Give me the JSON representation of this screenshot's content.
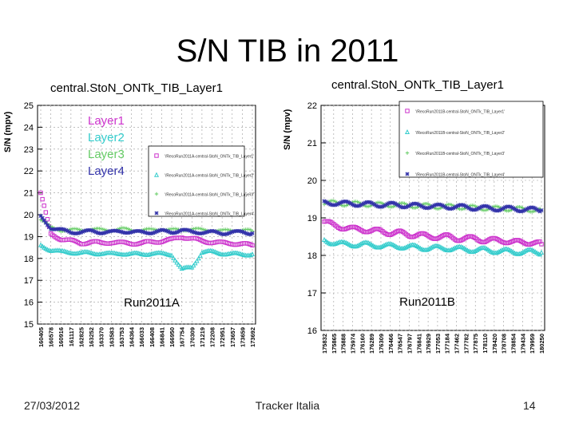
{
  "slide": {
    "title": "S/N TIB in 2011",
    "footer_date": "27/03/2012",
    "footer_center": "Tracker Italia",
    "page_number": "14"
  },
  "colors": {
    "layer1": "#cc33cc",
    "layer2": "#33cccc",
    "layer3": "#66cc66",
    "layer4": "#3333aa"
  },
  "chart_data": [
    {
      "type": "scatter",
      "title": "central.StoN_ONTk_TIB_Layer1",
      "ylabel": "S/N (mpv)",
      "xlabel": "",
      "ylim": [
        15,
        25
      ],
      "yticks": [
        15,
        16,
        17,
        18,
        19,
        20,
        21,
        22,
        23,
        24,
        25
      ],
      "period_label": "Run2011A",
      "x_tick_labels": [
        "160405",
        "160578",
        "160916",
        "161117",
        "162825",
        "163252",
        "163370",
        "163583",
        "163753",
        "164364",
        "166033",
        "166408",
        "166841",
        "166950",
        "167754",
        "170309",
        "171219",
        "172208",
        "172951",
        "173657",
        "173659",
        "173692"
      ],
      "legend_layers": [
        "Layer1",
        "Layer2",
        "Layer3",
        "Layer4"
      ],
      "legend_entries": [
        "'/RecoRun2011A-central-StoN_ONTk_TIB_Layer1'",
        "'/RecoRun2011A-central-StoN_ONTk_TIB_Layer2'",
        "'/RecoRun2011A-central-StoN_ONTk_TIB_Layer3'",
        "'/RecoRun2011A-central-StoN_ONTk_TIB_Layer4'"
      ],
      "series": [
        {
          "name": "Layer1",
          "color": "#cc33cc",
          "values": [
            21.0,
            19.1,
            18.9,
            18.8,
            18.7,
            18.75,
            18.7,
            18.75,
            18.7,
            18.7,
            18.7,
            18.75,
            18.8,
            18.85,
            19.0,
            18.9,
            18.8,
            18.75,
            18.7,
            18.7,
            18.65,
            18.6
          ]
        },
        {
          "name": "Layer2",
          "color": "#33cccc",
          "values": [
            18.6,
            18.4,
            18.3,
            18.3,
            18.25,
            18.25,
            18.25,
            18.2,
            18.25,
            18.2,
            18.2,
            18.25,
            18.2,
            18.2,
            17.5,
            17.6,
            18.3,
            18.3,
            18.25,
            18.2,
            18.2,
            18.2
          ]
        },
        {
          "name": "Layer3",
          "color": "#66cc66",
          "values": [
            19.8,
            19.4,
            19.3,
            19.3,
            19.3,
            19.35,
            19.3,
            19.3,
            19.35,
            19.3,
            19.3,
            19.3,
            19.35,
            19.3,
            19.3,
            19.35,
            19.3,
            19.3,
            19.25,
            19.3,
            19.3,
            19.25
          ]
        },
        {
          "name": "Layer4",
          "color": "#3333aa",
          "values": [
            19.9,
            19.4,
            19.3,
            19.2,
            19.2,
            19.25,
            19.2,
            19.2,
            19.25,
            19.2,
            19.2,
            19.2,
            19.25,
            19.2,
            19.3,
            19.2,
            19.2,
            19.2,
            19.15,
            19.2,
            19.2,
            19.15
          ]
        }
      ]
    },
    {
      "type": "scatter",
      "title": "central.StoN_ONTk_TIB_Layer1",
      "ylabel": "S/N (mpv)",
      "xlabel": "",
      "ylim": [
        16,
        22
      ],
      "yticks": [
        16,
        17,
        18,
        19,
        20,
        21,
        22
      ],
      "period_label": "Run2011B",
      "x_tick_labels": [
        "175832",
        "175865",
        "175888",
        "175974",
        "176160",
        "176289",
        "176309",
        "176466",
        "176547",
        "176797",
        "176841",
        "176929",
        "177053",
        "177184",
        "177462",
        "177782",
        "177875",
        "178110",
        "178420",
        "178708",
        "178854",
        "179434",
        "179959",
        "180250"
      ],
      "legend_entries": [
        "'/RecoRun2011B-central-StoN_ONTk_TIB_Layer1'",
        "'/RecoRun2011B-central-StoN_ONTk_TIB_Layer2'",
        "'/RecoRun2011B-central-StoN_ONTk_TIB_Layer3'",
        "'/RecoRun2011B-central-StoN_ONTk_TIB_Layer4'"
      ],
      "series": [
        {
          "name": "Layer1",
          "color": "#cc33cc",
          "values": [
            18.9,
            18.8,
            18.75,
            18.7,
            18.7,
            18.65,
            18.65,
            18.6,
            18.6,
            18.55,
            18.55,
            18.5,
            18.5,
            18.5,
            18.45,
            18.45,
            18.45,
            18.4,
            18.4,
            18.4,
            18.35,
            18.35,
            18.35,
            18.3
          ]
        },
        {
          "name": "Layer2",
          "color": "#33cccc",
          "values": [
            18.4,
            18.35,
            18.3,
            18.3,
            18.3,
            18.28,
            18.27,
            18.25,
            18.25,
            18.23,
            18.22,
            18.2,
            18.2,
            18.2,
            18.18,
            18.17,
            18.15,
            18.15,
            18.13,
            18.12,
            18.1,
            18.1,
            18.1,
            18.08
          ]
        },
        {
          "name": "Layer3",
          "color": "#66cc66",
          "values": [
            19.4,
            19.4,
            19.38,
            19.38,
            19.37,
            19.36,
            19.35,
            19.35,
            19.34,
            19.33,
            19.32,
            19.32,
            19.3,
            19.3,
            19.3,
            19.28,
            19.27,
            19.26,
            19.25,
            19.25,
            19.24,
            19.23,
            19.22,
            19.2
          ]
        },
        {
          "name": "Layer4",
          "color": "#3333aa",
          "values": [
            19.4,
            19.4,
            19.38,
            19.38,
            19.37,
            19.36,
            19.35,
            19.35,
            19.34,
            19.33,
            19.32,
            19.32,
            19.3,
            19.3,
            19.3,
            19.28,
            19.27,
            19.26,
            19.25,
            19.25,
            19.24,
            19.23,
            19.22,
            19.2
          ]
        }
      ]
    }
  ]
}
